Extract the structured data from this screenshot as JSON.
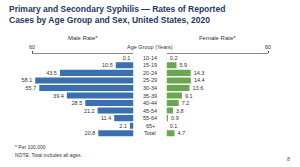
{
  "chart_data": {
    "type": "bar",
    "orientation": "horizontal",
    "title": "Primary and Secondary Syphilis — Rates of Reported Cases by Age Group and Sex, United States, 2020",
    "ylabel": "Age Group (Years)",
    "categories": [
      "10-14",
      "15-19",
      "20-24",
      "25-29",
      "30-34",
      "35-39",
      "40-44",
      "45-54",
      "55-64",
      "65+",
      "Total"
    ],
    "series": [
      {
        "name": "Male Rate*",
        "color": "#3a6fb0",
        "values": [
          0.1,
          10.5,
          43.5,
          58.1,
          55.7,
          39.4,
          28.5,
          21.2,
          11.4,
          2.1,
          20.8
        ]
      },
      {
        "name": "Female Rate*",
        "color": "#6aa84f",
        "values": [
          0.2,
          5.9,
          14.3,
          14.4,
          13.6,
          9.1,
          7.2,
          3.8,
          0.9,
          0.1,
          4.7
        ]
      }
    ],
    "xlim": [
      0,
      60
    ],
    "xticks": [
      60
    ],
    "data_labels": true,
    "annotations": [
      "* Per 100,000",
      "NOTE: Total includes all ages.",
      "8"
    ]
  }
}
